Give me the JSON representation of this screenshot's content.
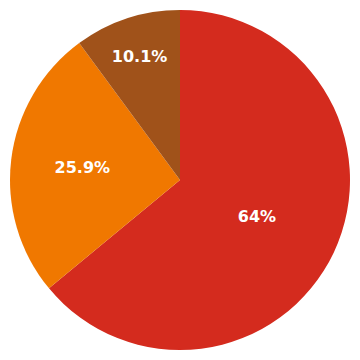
{
  "chart_data": {
    "type": "pie",
    "values": [
      64.0,
      25.9,
      10.1
    ],
    "value_labels": [
      "64%",
      "25.9%",
      "10.1%"
    ],
    "colors": [
      "#d42b1e",
      "#f07800",
      "#a0521a"
    ],
    "data_labels": true
  }
}
